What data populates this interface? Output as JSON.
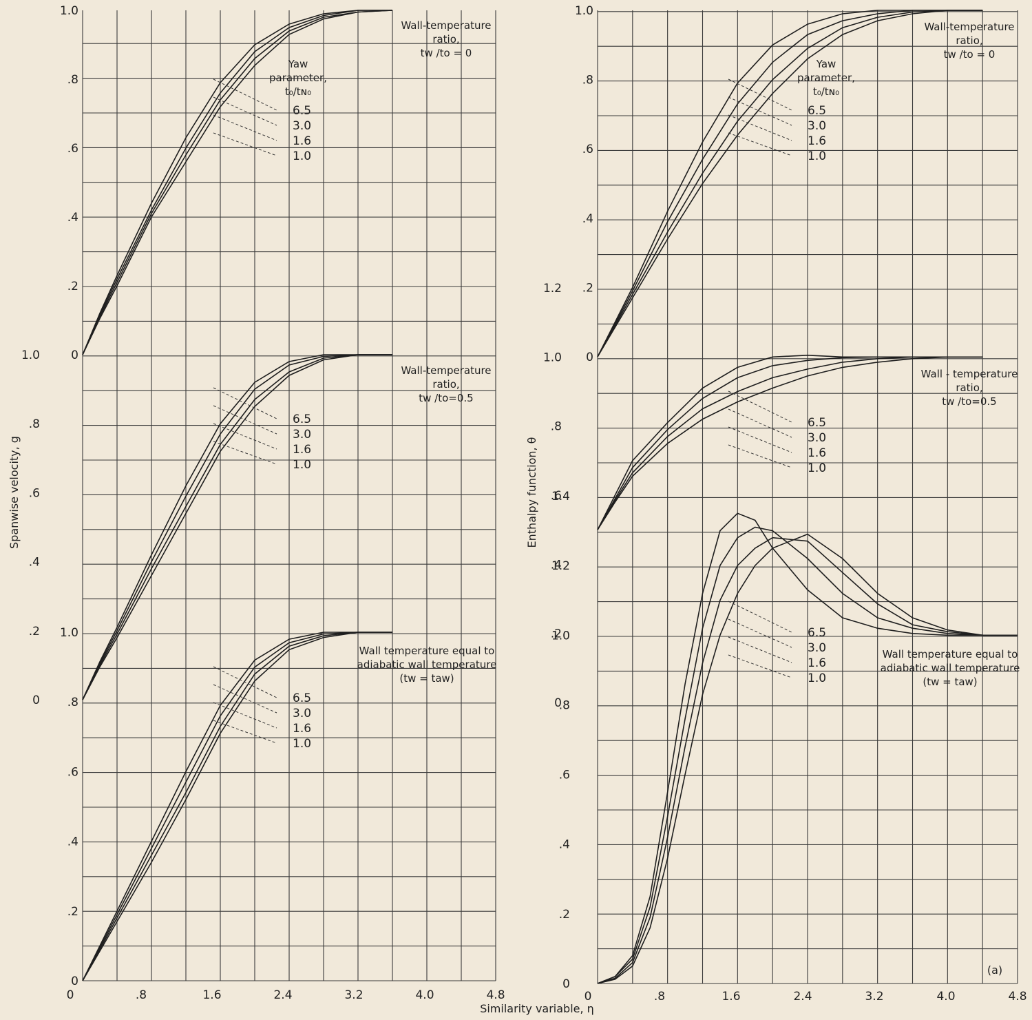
{
  "figure": {
    "x_axis_label": "Similarity variable, η",
    "x_ticks": [
      "0",
      ".8",
      "1.6",
      "2.4",
      "3.2",
      "4.0",
      "4.8"
    ],
    "left_y_label": "Spanwise velocity, g",
    "right_y_label": "Enthalpy function, θ",
    "panel_mark": "(a)",
    "yaw_param_label": [
      "Yaw",
      "parameter,",
      "t₀/tɴ₀"
    ],
    "yaw_values": [
      "6.5",
      "3.0",
      "1.6",
      "1.0"
    ]
  },
  "chart_data": [
    {
      "type": "line",
      "name": "spanwise-top",
      "ylabel": "Spanwise velocity, g",
      "caption": [
        "Wall-temperature",
        "ratio,",
        "tw /to = 0"
      ],
      "xlim": [
        0,
        4.8
      ],
      "ylim": [
        0,
        1.0
      ],
      "yticks": [
        "0",
        ".2",
        ".4",
        ".6",
        ".8",
        "1.0"
      ],
      "series": [
        {
          "name": "6.5",
          "x": [
            0,
            0.2,
            0.4,
            0.8,
            1.2,
            1.6,
            2.0,
            2.4,
            2.8,
            3.2,
            3.6
          ],
          "y": [
            0,
            0.12,
            0.23,
            0.44,
            0.63,
            0.79,
            0.9,
            0.96,
            0.99,
            1.0,
            1.0
          ]
        },
        {
          "name": "3.0",
          "x": [
            0,
            0.2,
            0.4,
            0.8,
            1.2,
            1.6,
            2.0,
            2.4,
            2.8,
            3.2,
            3.6
          ],
          "y": [
            0,
            0.115,
            0.22,
            0.42,
            0.6,
            0.76,
            0.88,
            0.95,
            0.985,
            1.0,
            1.0
          ]
        },
        {
          "name": "1.6",
          "x": [
            0,
            0.2,
            0.4,
            0.8,
            1.2,
            1.6,
            2.0,
            2.4,
            2.8,
            3.2,
            3.6
          ],
          "y": [
            0,
            0.11,
            0.21,
            0.41,
            0.58,
            0.74,
            0.86,
            0.94,
            0.98,
            0.995,
            1.0
          ]
        },
        {
          "name": "1.0",
          "x": [
            0,
            0.2,
            0.4,
            0.8,
            1.2,
            1.6,
            2.0,
            2.4,
            2.8,
            3.2,
            3.6
          ],
          "y": [
            0,
            0.105,
            0.2,
            0.4,
            0.56,
            0.72,
            0.84,
            0.93,
            0.975,
            0.995,
            1.0
          ]
        }
      ]
    },
    {
      "type": "line",
      "name": "spanwise-mid",
      "caption": [
        "Wall-temperature",
        "ratio,",
        "tw /to=0.5"
      ],
      "xlim": [
        0,
        4.8
      ],
      "ylim": [
        0,
        1.0
      ],
      "yticks": [
        "0",
        ".2",
        ".4",
        ".6",
        ".8",
        "1.0"
      ],
      "series": [
        {
          "name": "6.5",
          "x": [
            0,
            0.2,
            0.4,
            0.8,
            1.2,
            1.6,
            2.0,
            2.4,
            2.8,
            3.2,
            3.6
          ],
          "y": [
            0,
            0.11,
            0.21,
            0.42,
            0.62,
            0.8,
            0.92,
            0.98,
            1.0,
            1.0,
            1.0
          ]
        },
        {
          "name": "3.0",
          "x": [
            0,
            0.2,
            0.4,
            0.8,
            1.2,
            1.6,
            2.0,
            2.4,
            2.8,
            3.2,
            3.6
          ],
          "y": [
            0,
            0.105,
            0.2,
            0.4,
            0.59,
            0.77,
            0.9,
            0.97,
            0.995,
            1.0,
            1.0
          ]
        },
        {
          "name": "1.6",
          "x": [
            0,
            0.2,
            0.4,
            0.8,
            1.2,
            1.6,
            2.0,
            2.4,
            2.8,
            3.2,
            3.6
          ],
          "y": [
            0,
            0.1,
            0.19,
            0.38,
            0.56,
            0.74,
            0.87,
            0.95,
            0.99,
            1.0,
            1.0
          ]
        },
        {
          "name": "1.0",
          "x": [
            0,
            0.2,
            0.4,
            0.8,
            1.2,
            1.6,
            2.0,
            2.4,
            2.8,
            3.2,
            3.6
          ],
          "y": [
            0,
            0.095,
            0.18,
            0.36,
            0.54,
            0.72,
            0.85,
            0.94,
            0.985,
            1.0,
            1.0
          ]
        }
      ]
    },
    {
      "type": "line",
      "name": "spanwise-bottom",
      "caption": [
        "Wall temperature equal to",
        "adiabatic wall temperature",
        "(tw = taw)"
      ],
      "xlim": [
        0,
        4.8
      ],
      "ylim": [
        0,
        1.0
      ],
      "yticks": [
        "0",
        ".2",
        ".4",
        ".6",
        ".8",
        "1.0"
      ],
      "series": [
        {
          "name": "6.5",
          "x": [
            0,
            0.2,
            0.4,
            0.8,
            1.2,
            1.6,
            2.0,
            2.4,
            2.8,
            3.2,
            3.6
          ],
          "y": [
            0,
            0.1,
            0.2,
            0.4,
            0.6,
            0.79,
            0.92,
            0.98,
            1.0,
            1.0,
            1.0
          ]
        },
        {
          "name": "3.0",
          "x": [
            0,
            0.2,
            0.4,
            0.8,
            1.2,
            1.6,
            2.0,
            2.4,
            2.8,
            3.2,
            3.6
          ],
          "y": [
            0,
            0.095,
            0.19,
            0.38,
            0.57,
            0.76,
            0.9,
            0.97,
            0.995,
            1.0,
            1.0
          ]
        },
        {
          "name": "1.6",
          "x": [
            0,
            0.2,
            0.4,
            0.8,
            1.2,
            1.6,
            2.0,
            2.4,
            2.8,
            3.2,
            3.6
          ],
          "y": [
            0,
            0.09,
            0.18,
            0.36,
            0.54,
            0.73,
            0.88,
            0.96,
            0.99,
            1.0,
            1.0
          ]
        },
        {
          "name": "1.0",
          "x": [
            0,
            0.2,
            0.4,
            0.8,
            1.2,
            1.6,
            2.0,
            2.4,
            2.8,
            3.2,
            3.6
          ],
          "y": [
            0,
            0.085,
            0.17,
            0.34,
            0.52,
            0.71,
            0.86,
            0.95,
            0.985,
            1.0,
            1.0
          ]
        }
      ]
    },
    {
      "type": "line",
      "name": "enthalpy-top",
      "ylabel": "Enthalpy function, θ",
      "caption": [
        "Wall-temperature",
        "ratio,",
        "tw /to = 0"
      ],
      "xlim": [
        0,
        4.8
      ],
      "ylim": [
        0,
        1.0
      ],
      "yticks": [
        "0",
        ".2",
        ".4",
        ".6",
        ".8",
        "1.0"
      ],
      "series": [
        {
          "name": "6.5",
          "x": [
            0,
            0.2,
            0.4,
            0.8,
            1.2,
            1.6,
            2.0,
            2.4,
            2.8,
            3.2,
            3.6,
            4.0,
            4.4
          ],
          "y": [
            0,
            0.1,
            0.2,
            0.42,
            0.62,
            0.79,
            0.9,
            0.96,
            0.99,
            1.0,
            1.0,
            1.0,
            1.0
          ]
        },
        {
          "name": "3.0",
          "x": [
            0,
            0.2,
            0.4,
            0.8,
            1.2,
            1.6,
            2.0,
            2.4,
            2.8,
            3.2,
            3.6,
            4.0,
            4.4
          ],
          "y": [
            0,
            0.095,
            0.19,
            0.39,
            0.57,
            0.73,
            0.85,
            0.93,
            0.97,
            0.99,
            1.0,
            1.0,
            1.0
          ]
        },
        {
          "name": "1.6",
          "x": [
            0,
            0.2,
            0.4,
            0.8,
            1.2,
            1.6,
            2.0,
            2.4,
            2.8,
            3.2,
            3.6,
            4.0,
            4.4
          ],
          "y": [
            0,
            0.09,
            0.18,
            0.36,
            0.53,
            0.68,
            0.8,
            0.89,
            0.95,
            0.98,
            0.995,
            1.0,
            1.0
          ]
        },
        {
          "name": "1.0",
          "x": [
            0,
            0.2,
            0.4,
            0.8,
            1.2,
            1.6,
            2.0,
            2.4,
            2.8,
            3.2,
            3.6,
            4.0,
            4.4
          ],
          "y": [
            0,
            0.085,
            0.17,
            0.34,
            0.5,
            0.64,
            0.76,
            0.86,
            0.93,
            0.97,
            0.99,
            1.0,
            1.0
          ]
        }
      ]
    },
    {
      "type": "line",
      "name": "enthalpy-mid",
      "caption": [
        "Wall - temperature",
        "ratio,",
        "tw /to=0.5"
      ],
      "xlim": [
        0,
        4.8
      ],
      "ylim": [
        0,
        1.2
      ],
      "yticks": [
        "0",
        ".2",
        ".4",
        ".6",
        ".8",
        "1.0",
        "1.2"
      ],
      "series": [
        {
          "name": "6.5",
          "x": [
            0,
            0.2,
            0.4,
            0.8,
            1.2,
            1.6,
            2.0,
            2.4,
            2.8,
            3.2,
            3.6,
            4.0,
            4.4
          ],
          "y": [
            0.5,
            0.6,
            0.7,
            0.81,
            0.91,
            0.97,
            1.0,
            1.005,
            1.0,
            1.0,
            1.0,
            1.0,
            1.0
          ]
        },
        {
          "name": "3.0",
          "x": [
            0,
            0.2,
            0.4,
            0.8,
            1.2,
            1.6,
            2.0,
            2.4,
            2.8,
            3.2,
            3.6,
            4.0,
            4.4
          ],
          "y": [
            0.5,
            0.59,
            0.68,
            0.79,
            0.88,
            0.94,
            0.975,
            0.99,
            0.998,
            1.0,
            1.0,
            1.0,
            1.0
          ]
        },
        {
          "name": "1.6",
          "x": [
            0,
            0.2,
            0.4,
            0.8,
            1.2,
            1.6,
            2.0,
            2.4,
            2.8,
            3.2,
            3.6,
            4.0,
            4.4
          ],
          "y": [
            0.5,
            0.585,
            0.665,
            0.77,
            0.85,
            0.9,
            0.94,
            0.965,
            0.985,
            0.995,
            1.0,
            1.0,
            1.0
          ]
        },
        {
          "name": "1.0",
          "x": [
            0,
            0.2,
            0.4,
            0.8,
            1.2,
            1.6,
            2.0,
            2.4,
            2.8,
            3.2,
            3.6,
            4.0,
            4.4
          ],
          "y": [
            0.5,
            0.58,
            0.655,
            0.75,
            0.82,
            0.87,
            0.91,
            0.945,
            0.97,
            0.985,
            0.995,
            1.0,
            1.0
          ]
        }
      ]
    },
    {
      "type": "line",
      "name": "enthalpy-bottom",
      "caption": [
        "Wall temperature equal to",
        "adiabatic wall temperature",
        "(tw = taw)"
      ],
      "xlim": [
        0,
        4.8
      ],
      "ylim": [
        0,
        1.4
      ],
      "yticks": [
        "0",
        ".2",
        ".4",
        ".6",
        ".8",
        "1.0",
        "1.2",
        "1.4"
      ],
      "series": [
        {
          "name": "6.5",
          "x": [
            0,
            0.2,
            0.4,
            0.6,
            0.8,
            1.0,
            1.2,
            1.4,
            1.6,
            1.8,
            2.0,
            2.4,
            2.8,
            3.2,
            3.6,
            4.0,
            4.4,
            4.8
          ],
          "y": [
            0,
            0.02,
            0.08,
            0.25,
            0.55,
            0.86,
            1.12,
            1.3,
            1.35,
            1.33,
            1.25,
            1.13,
            1.05,
            1.02,
            1.005,
            1.0,
            1.0,
            1.0
          ]
        },
        {
          "name": "3.0",
          "x": [
            0,
            0.2,
            0.4,
            0.6,
            0.8,
            1.0,
            1.2,
            1.4,
            1.6,
            1.8,
            2.0,
            2.4,
            2.8,
            3.2,
            3.6,
            4.0,
            4.4,
            4.8
          ],
          "y": [
            0,
            0.02,
            0.07,
            0.22,
            0.48,
            0.76,
            1.02,
            1.2,
            1.28,
            1.31,
            1.3,
            1.22,
            1.12,
            1.05,
            1.02,
            1.005,
            1.0,
            1.0
          ]
        },
        {
          "name": "1.6",
          "x": [
            0,
            0.2,
            0.4,
            0.6,
            0.8,
            1.0,
            1.2,
            1.4,
            1.6,
            1.8,
            2.0,
            2.4,
            2.8,
            3.2,
            3.6,
            4.0,
            4.4,
            4.8
          ],
          "y": [
            0,
            0.015,
            0.06,
            0.19,
            0.42,
            0.68,
            0.92,
            1.1,
            1.2,
            1.25,
            1.28,
            1.27,
            1.18,
            1.09,
            1.03,
            1.01,
            1.0,
            1.0
          ]
        },
        {
          "name": "1.0",
          "x": [
            0,
            0.2,
            0.4,
            0.6,
            0.8,
            1.0,
            1.2,
            1.4,
            1.6,
            1.8,
            2.0,
            2.4,
            2.8,
            3.2,
            3.6,
            4.0,
            4.4,
            4.8
          ],
          "y": [
            0,
            0.012,
            0.05,
            0.16,
            0.36,
            0.6,
            0.83,
            1.0,
            1.12,
            1.2,
            1.25,
            1.29,
            1.22,
            1.12,
            1.05,
            1.015,
            1.0,
            1.0
          ]
        }
      ]
    }
  ]
}
